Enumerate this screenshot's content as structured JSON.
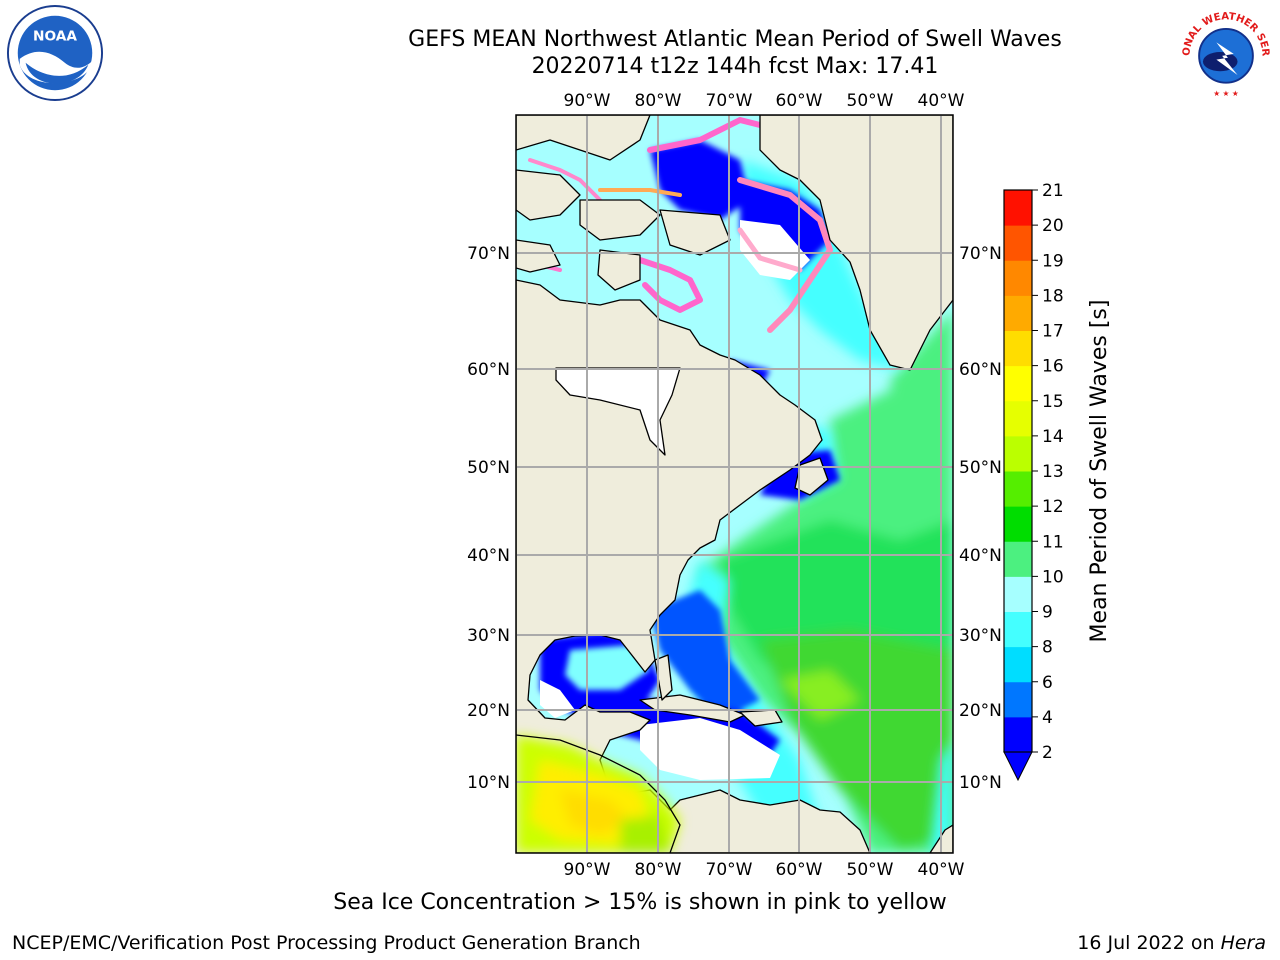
{
  "header": {
    "title_line1": "GEFS MEAN Northwest Atlantic Mean Period of Swell Waves",
    "title_line2": "20220714 t12z 144h fcst   Max: 17.41"
  },
  "logos": {
    "left": "noaa-logo",
    "right": "national-weather-service-logo",
    "left_text": "NOAA",
    "right_text": "NATIONAL WEATHER SERVICE"
  },
  "map": {
    "lon_labels": [
      "90°W",
      "80°W",
      "70°W",
      "60°W",
      "50°W",
      "40°W"
    ],
    "lat_labels": [
      "70°N",
      "60°N",
      "50°N",
      "40°N",
      "30°N",
      "20°N",
      "10°N"
    ],
    "land_color": "#efeddc",
    "water_nodata_color": "#ffffff"
  },
  "colorbar": {
    "label": "Mean Period of Swell Waves [s]",
    "ticks": [
      "2",
      "4",
      "6",
      "8",
      "9",
      "10",
      "11",
      "12",
      "13",
      "14",
      "15",
      "16",
      "17",
      "18",
      "19",
      "20",
      "21"
    ],
    "colors": [
      "#0000ff",
      "#0077ff",
      "#00ddff",
      "#44ffff",
      "#a6ffff",
      "#4cf080",
      "#00dd00",
      "#55ee00",
      "#bbff00",
      "#e6ff00",
      "#ffff00",
      "#ffdd00",
      "#ffaa00",
      "#ff8800",
      "#ff5500",
      "#ff1100"
    ],
    "extend_color": "#0000ff"
  },
  "footer": {
    "ice_note": "Sea Ice Concentration > 15% is shown in pink to yellow",
    "credit": "NCEP/EMC/Verification Post Processing Product Generation Branch",
    "date_prefix": "16 Jul 2022 on ",
    "date_host": "Hera"
  }
}
